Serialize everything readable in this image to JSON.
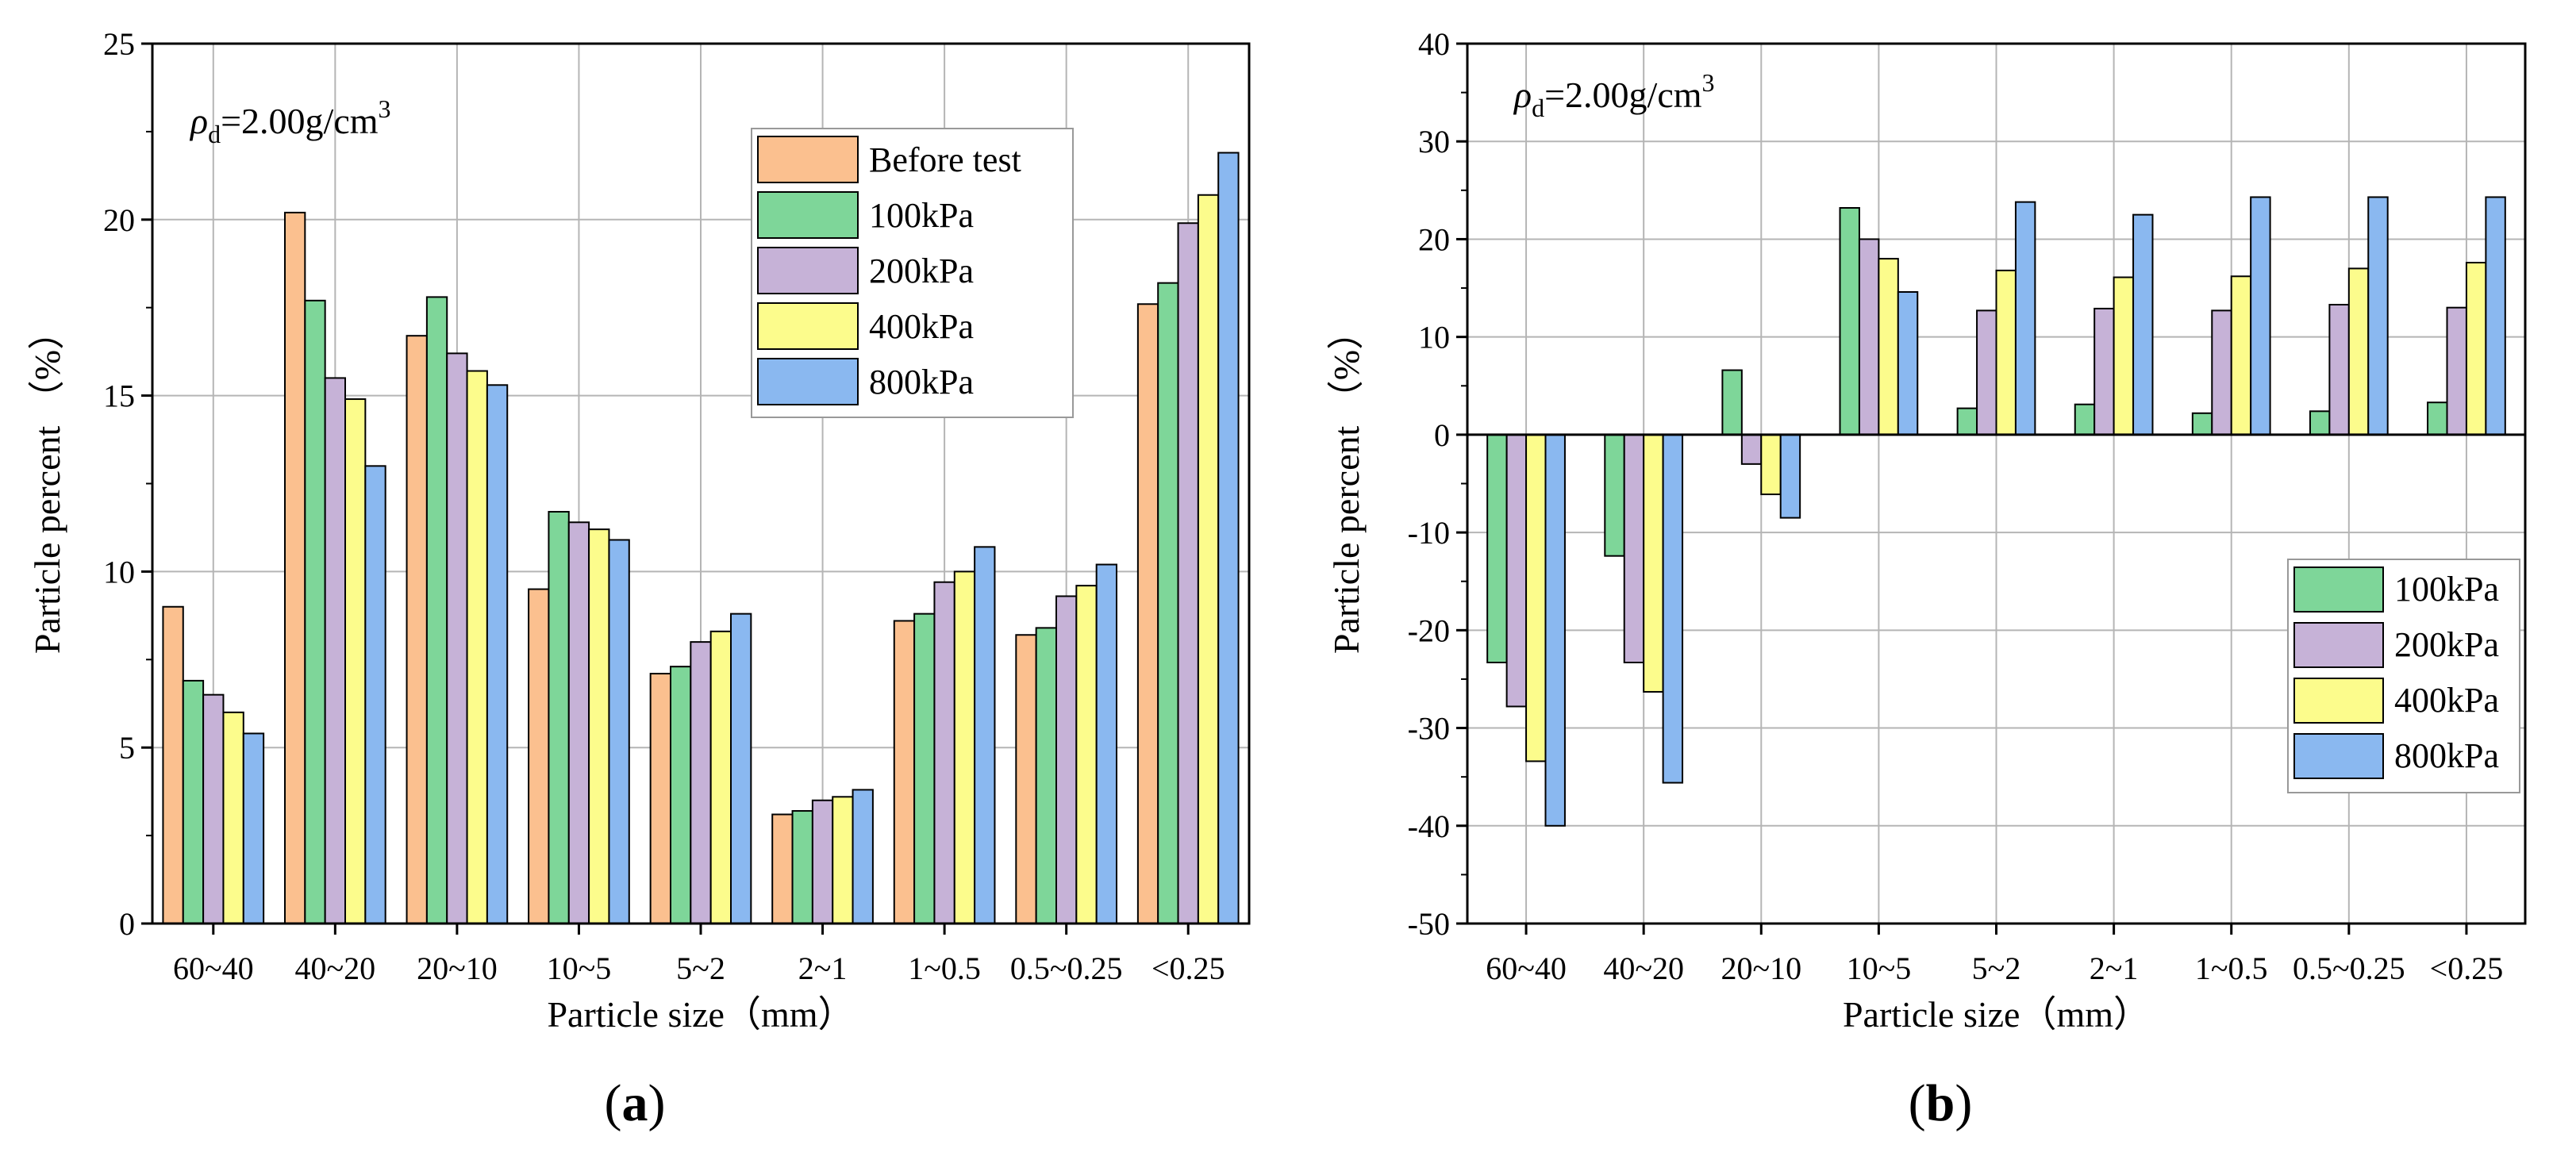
{
  "colors": {
    "Before test": "#FBC08F",
    "100kPa": "#7ED699",
    "200kPa": "#C6B2D7",
    "400kPa": "#FCFC8C",
    "800kPa": "#8AB8F0"
  },
  "chart_data": [
    {
      "id": "a",
      "type": "bar",
      "panel_label": "a",
      "xlabel": "Particle size（mm）",
      "ylabel": "Particle percent （%）",
      "annotation": {
        "rho": "ρ",
        "sub": "d",
        "text": "=2.00g/cm",
        "sup": "3"
      },
      "ylim": [
        0,
        25
      ],
      "yticks": [
        0,
        5,
        10,
        15,
        20,
        25
      ],
      "grid": true,
      "legend_position": "top-right",
      "categories": [
        "60~40",
        "40~20",
        "20~10",
        "10~5",
        "5~2",
        "2~1",
        "1~0.5",
        "0.5~0.25",
        "<0.25"
      ],
      "series": [
        {
          "name": "Before test",
          "values": [
            9.0,
            20.2,
            16.7,
            9.5,
            7.1,
            3.1,
            8.6,
            8.2,
            17.6
          ]
        },
        {
          "name": "100kPa",
          "values": [
            6.9,
            17.7,
            17.8,
            11.7,
            7.3,
            3.2,
            8.8,
            8.4,
            18.2
          ]
        },
        {
          "name": "200kPa",
          "values": [
            6.5,
            15.5,
            16.2,
            11.4,
            8.0,
            3.5,
            9.7,
            9.3,
            19.9
          ]
        },
        {
          "name": "400kPa",
          "values": [
            6.0,
            14.9,
            15.7,
            11.2,
            8.3,
            3.6,
            10.0,
            9.6,
            20.7
          ]
        },
        {
          "name": "800kPa",
          "values": [
            5.4,
            13.0,
            15.3,
            10.9,
            8.8,
            3.8,
            10.7,
            10.2,
            21.9
          ]
        }
      ]
    },
    {
      "id": "b",
      "type": "bar",
      "panel_label": "b",
      "xlabel": "Particle size（mm）",
      "ylabel": "Particle percent （%）",
      "annotation": {
        "rho": "ρ",
        "sub": "d",
        "text": "=2.00g/cm",
        "sup": "3"
      },
      "ylim": [
        -50,
        40
      ],
      "yticks": [
        -50,
        -40,
        -30,
        -20,
        -10,
        0,
        10,
        20,
        30,
        40
      ],
      "grid": true,
      "legend_position": "bottom-right",
      "categories": [
        "60~40",
        "40~20",
        "20~10",
        "10~5",
        "5~2",
        "2~1",
        "1~0.5",
        "0.5~0.25",
        "<0.25"
      ],
      "series": [
        {
          "name": "100kPa",
          "values": [
            -23.3,
            -12.4,
            6.6,
            23.2,
            2.7,
            3.1,
            2.2,
            2.4,
            3.3
          ]
        },
        {
          "name": "200kPa",
          "values": [
            -27.8,
            -23.3,
            -3.0,
            20.0,
            12.7,
            12.9,
            12.7,
            13.3,
            13.0
          ]
        },
        {
          "name": "400kPa",
          "values": [
            -33.4,
            -26.3,
            -6.1,
            18.0,
            16.8,
            16.1,
            16.2,
            17.0,
            17.6
          ]
        },
        {
          "name": "800kPa",
          "values": [
            -40.0,
            -35.6,
            -8.5,
            14.6,
            23.8,
            22.5,
            24.3,
            24.3,
            24.3
          ]
        }
      ]
    }
  ]
}
